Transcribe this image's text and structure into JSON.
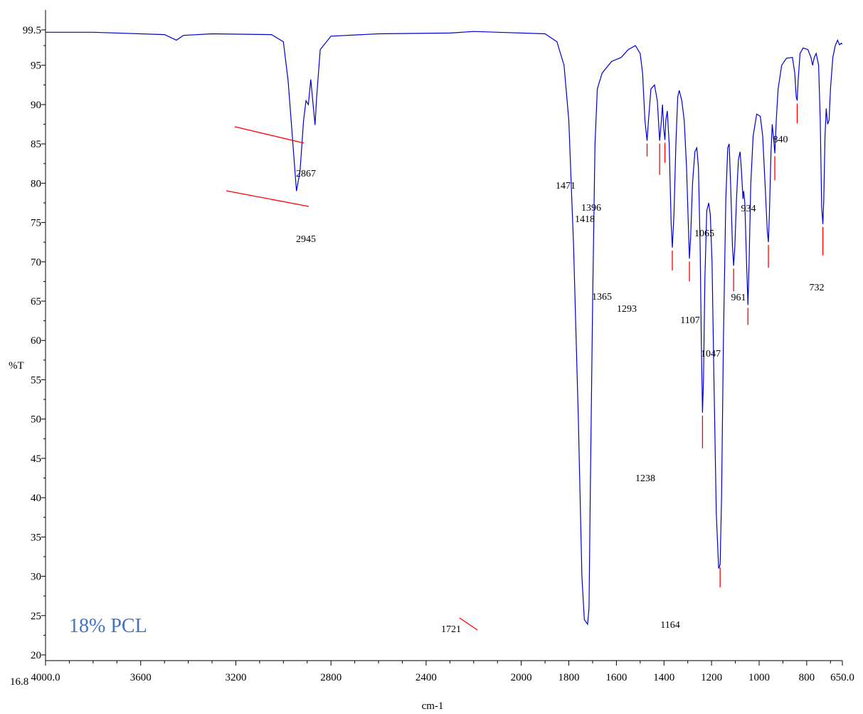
{
  "chart_data": {
    "type": "line",
    "title": "",
    "xlabel": "cm-1",
    "ylabel": "%T",
    "xlim": [
      4000.0,
      650.0
    ],
    "ylim": [
      16.8,
      99.5
    ],
    "x_reversed": true,
    "x_ticks": [
      {
        "value": 4000,
        "label": "4000.0"
      },
      {
        "value": 3600,
        "label": "3600"
      },
      {
        "value": 3200,
        "label": "3200"
      },
      {
        "value": 2800,
        "label": "2800"
      },
      {
        "value": 2400,
        "label": "2400"
      },
      {
        "value": 2000,
        "label": "2000"
      },
      {
        "value": 1800,
        "label": "1800"
      },
      {
        "value": 1600,
        "label": "1600"
      },
      {
        "value": 1400,
        "label": "1400"
      },
      {
        "value": 1200,
        "label": "1200"
      },
      {
        "value": 1000,
        "label": "1000"
      },
      {
        "value": 800,
        "label": "800"
      },
      {
        "value": 650,
        "label": "650.0"
      }
    ],
    "y_ticks": [
      {
        "value": 99.5,
        "label": "99.5"
      },
      {
        "value": 95,
        "label": "95"
      },
      {
        "value": 90,
        "label": "90"
      },
      {
        "value": 85,
        "label": "85"
      },
      {
        "value": 80,
        "label": "80"
      },
      {
        "value": 75,
        "label": "75"
      },
      {
        "value": 70,
        "label": "70"
      },
      {
        "value": 65,
        "label": "65"
      },
      {
        "value": 60,
        "label": "60"
      },
      {
        "value": 55,
        "label": "55"
      },
      {
        "value": 50,
        "label": "50"
      },
      {
        "value": 45,
        "label": "45"
      },
      {
        "value": 40,
        "label": "40"
      },
      {
        "value": 35,
        "label": "35"
      },
      {
        "value": 30,
        "label": "30"
      },
      {
        "value": 25,
        "label": "25"
      },
      {
        "value": 20,
        "label": "20"
      },
      {
        "value": 16.8,
        "label": "16.8"
      }
    ],
    "series": [
      {
        "color": "#0000cc",
        "points": [
          [
            4000,
            99.2
          ],
          [
            3800,
            99.2
          ],
          [
            3500,
            98.9
          ],
          [
            3450,
            98.2
          ],
          [
            3420,
            98.8
          ],
          [
            3300,
            99.0
          ],
          [
            3050,
            98.9
          ],
          [
            3000,
            98.0
          ],
          [
            2980,
            93.0
          ],
          [
            2960,
            85.0
          ],
          [
            2945,
            79.0
          ],
          [
            2930,
            81.5
          ],
          [
            2915,
            88.0
          ],
          [
            2905,
            90.5
          ],
          [
            2895,
            90.0
          ],
          [
            2885,
            93.2
          ],
          [
            2875,
            90.0
          ],
          [
            2867,
            87.4
          ],
          [
            2860,
            91.0
          ],
          [
            2845,
            97.0
          ],
          [
            2800,
            98.7
          ],
          [
            2600,
            99.0
          ],
          [
            2300,
            99.1
          ],
          [
            2200,
            99.3
          ],
          [
            2100,
            99.2
          ],
          [
            1900,
            99.0
          ],
          [
            1850,
            98.0
          ],
          [
            1820,
            95.0
          ],
          [
            1800,
            88.0
          ],
          [
            1780,
            72.0
          ],
          [
            1760,
            50.0
          ],
          [
            1745,
            30.0
          ],
          [
            1735,
            24.5
          ],
          [
            1721,
            23.9
          ],
          [
            1715,
            26.0
          ],
          [
            1710,
            40.0
          ],
          [
            1700,
            65.0
          ],
          [
            1690,
            85.0
          ],
          [
            1680,
            92.0
          ],
          [
            1660,
            94.0
          ],
          [
            1620,
            95.5
          ],
          [
            1580,
            96.0
          ],
          [
            1550,
            97.0
          ],
          [
            1520,
            97.5
          ],
          [
            1500,
            96.5
          ],
          [
            1490,
            94.0
          ],
          [
            1480,
            88.0
          ],
          [
            1471,
            85.4
          ],
          [
            1465,
            88.0
          ],
          [
            1455,
            92.0
          ],
          [
            1440,
            92.5
          ],
          [
            1428,
            90.5
          ],
          [
            1418,
            85.4
          ],
          [
            1412,
            87.5
          ],
          [
            1406,
            90.0
          ],
          [
            1401,
            87.0
          ],
          [
            1396,
            85.5
          ],
          [
            1392,
            88.0
          ],
          [
            1386,
            89.2
          ],
          [
            1378,
            85.0
          ],
          [
            1370,
            75.0
          ],
          [
            1365,
            71.8
          ],
          [
            1358,
            76.0
          ],
          [
            1350,
            85.0
          ],
          [
            1342,
            91.0
          ],
          [
            1336,
            91.8
          ],
          [
            1325,
            90.5
          ],
          [
            1315,
            88.0
          ],
          [
            1305,
            82.0
          ],
          [
            1298,
            75.0
          ],
          [
            1293,
            70.4
          ],
          [
            1288,
            73.0
          ],
          [
            1280,
            80.0
          ],
          [
            1270,
            84.0
          ],
          [
            1262,
            84.5
          ],
          [
            1255,
            82.0
          ],
          [
            1248,
            72.0
          ],
          [
            1243,
            60.0
          ],
          [
            1238,
            50.8
          ],
          [
            1234,
            55.0
          ],
          [
            1228,
            68.0
          ],
          [
            1220,
            76.5
          ],
          [
            1212,
            77.5
          ],
          [
            1205,
            76.0
          ],
          [
            1198,
            70.0
          ],
          [
            1190,
            55.0
          ],
          [
            1180,
            38.0
          ],
          [
            1170,
            31.0
          ],
          [
            1164,
            31.5
          ],
          [
            1158,
            40.0
          ],
          [
            1150,
            60.0
          ],
          [
            1140,
            78.0
          ],
          [
            1132,
            84.5
          ],
          [
            1126,
            85.0
          ],
          [
            1120,
            80.0
          ],
          [
            1112,
            72.0
          ],
          [
            1107,
            69.5
          ],
          [
            1102,
            72.0
          ],
          [
            1095,
            78.0
          ],
          [
            1087,
            83.0
          ],
          [
            1080,
            84.0
          ],
          [
            1075,
            82.0
          ],
          [
            1068,
            78.0
          ],
          [
            1065,
            79.0
          ],
          [
            1060,
            77.5
          ],
          [
            1053,
            70.0
          ],
          [
            1047,
            64.5
          ],
          [
            1042,
            70.0
          ],
          [
            1035,
            80.0
          ],
          [
            1025,
            86.0
          ],
          [
            1010,
            88.8
          ],
          [
            995,
            88.5
          ],
          [
            985,
            86.0
          ],
          [
            975,
            80.0
          ],
          [
            966,
            74.0
          ],
          [
            961,
            72.5
          ],
          [
            957,
            76.0
          ],
          [
            950,
            84.0
          ],
          [
            945,
            87.5
          ],
          [
            940,
            86.0
          ],
          [
            934,
            83.8
          ],
          [
            928,
            88.0
          ],
          [
            920,
            92.0
          ],
          [
            905,
            95.0
          ],
          [
            885,
            95.9
          ],
          [
            860,
            96.0
          ],
          [
            850,
            94.0
          ],
          [
            844,
            91.0
          ],
          [
            840,
            90.5
          ],
          [
            836,
            93.0
          ],
          [
            828,
            96.5
          ],
          [
            815,
            97.2
          ],
          [
            795,
            97.0
          ],
          [
            782,
            96.0
          ],
          [
            775,
            95.0
          ],
          [
            768,
            96.0
          ],
          [
            760,
            96.5
          ],
          [
            750,
            95.0
          ],
          [
            743,
            88.0
          ],
          [
            737,
            77.0
          ],
          [
            732,
            74.8
          ],
          [
            728,
            78.0
          ],
          [
            723,
            86.0
          ],
          [
            718,
            89.5
          ],
          [
            712,
            87.5
          ],
          [
            706,
            88.0
          ],
          [
            700,
            92.0
          ],
          [
            690,
            96.0
          ],
          [
            680,
            97.5
          ],
          [
            670,
            98.2
          ],
          [
            662,
            97.6
          ],
          [
            655,
            97.8
          ],
          [
            650,
            97.7
          ]
        ]
      }
    ],
    "peaks": [
      {
        "x": 2867,
        "label": "2867"
      },
      {
        "x": 2945,
        "label": "2945"
      },
      {
        "x": 1721,
        "label": "1721"
      },
      {
        "x": 1471,
        "label": "1471"
      },
      {
        "x": 1418,
        "label": "1418"
      },
      {
        "x": 1396,
        "label": "1396"
      },
      {
        "x": 1365,
        "label": "1365"
      },
      {
        "x": 1293,
        "label": "1293"
      },
      {
        "x": 1238,
        "label": "1238"
      },
      {
        "x": 1164,
        "label": "1164"
      },
      {
        "x": 1107,
        "label": "1107"
      },
      {
        "x": 1065,
        "label": "1065"
      },
      {
        "x": 1047,
        "label": "1047"
      },
      {
        "x": 961,
        "label": "961"
      },
      {
        "x": 934,
        "label": "934"
      },
      {
        "x": 840,
        "label": "840"
      },
      {
        "x": 732,
        "label": "732"
      }
    ],
    "annotations": [
      {
        "text": "18% PCL",
        "color": "#4472c4"
      }
    ],
    "grid": false
  }
}
